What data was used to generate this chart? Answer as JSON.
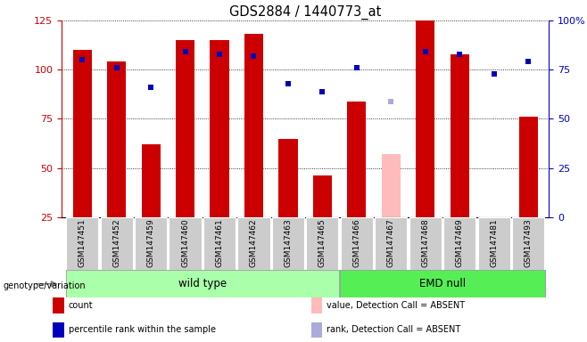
{
  "title": "GDS2884 / 1440773_at",
  "samples": [
    "GSM147451",
    "GSM147452",
    "GSM147459",
    "GSM147460",
    "GSM147461",
    "GSM147462",
    "GSM147463",
    "GSM147465",
    "GSM147466",
    "GSM147467",
    "GSM147468",
    "GSM147469",
    "GSM147481",
    "GSM147493"
  ],
  "wt_count": 8,
  "emd_count": 6,
  "count_values": [
    110,
    104,
    62,
    115,
    115,
    118,
    65,
    46,
    84,
    57,
    125,
    108,
    25,
    76
  ],
  "rank_values": [
    80,
    76,
    66,
    84,
    83,
    82,
    68,
    64,
    76,
    59,
    84,
    83,
    73,
    79
  ],
  "absent_count": [
    null,
    null,
    null,
    null,
    null,
    null,
    null,
    null,
    null,
    57,
    null,
    null,
    25,
    null
  ],
  "absent_rank": [
    null,
    null,
    null,
    null,
    null,
    null,
    null,
    null,
    null,
    59,
    null,
    null,
    null,
    null
  ],
  "ylim_left": [
    25,
    125
  ],
  "ylim_right": [
    0,
    100
  ],
  "yticks_left": [
    25,
    50,
    75,
    100,
    125
  ],
  "yticks_right": [
    0,
    25,
    50,
    75,
    100
  ],
  "bar_width": 0.55,
  "marker_size": 5,
  "colors": {
    "count_bar": "#cc0000",
    "absent_bar": "#ffbbbb",
    "rank_marker": "#0000bb",
    "absent_rank_marker": "#aaaadd",
    "wt_group_bg": "#aaffaa",
    "emd_group_bg": "#55ee55",
    "sample_bg": "#cccccc",
    "axis_left": "#cc0000",
    "axis_right": "#0000cc"
  },
  "legend_items": [
    {
      "label": "count",
      "color": "#cc0000"
    },
    {
      "label": "percentile rank within the sample",
      "color": "#0000bb"
    },
    {
      "label": "value, Detection Call = ABSENT",
      "color": "#ffbbbb"
    },
    {
      "label": "rank, Detection Call = ABSENT",
      "color": "#aaaadd"
    }
  ],
  "genotype_label": "genotype/variation",
  "group_labels": [
    "wild type",
    "EMD null"
  ]
}
